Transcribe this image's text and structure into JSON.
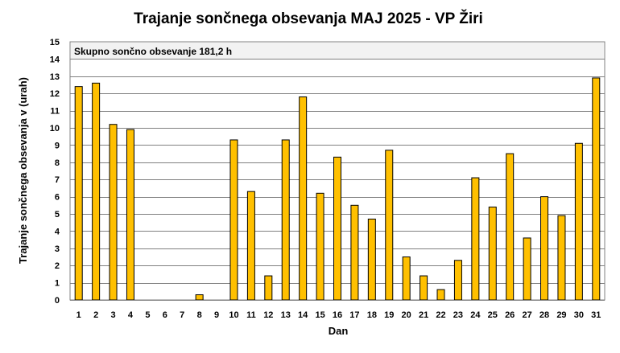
{
  "chart_data": {
    "type": "bar",
    "title": "Trajanje  sončnega obsevanja  MAJ 2025 - VP Žiri",
    "xlabel": "Dan",
    "ylabel": "Trajanje  sončnega obsevanja  v (urah)",
    "annotation": "Skupno sončno obsevanje 181,2 h",
    "ylim": [
      0,
      15
    ],
    "yticks": [
      0,
      1,
      2,
      3,
      4,
      5,
      6,
      7,
      8,
      9,
      10,
      11,
      12,
      13,
      14,
      15
    ],
    "categories": [
      "1",
      "2",
      "3",
      "4",
      "5",
      "6",
      "7",
      "8",
      "9",
      "10",
      "11",
      "12",
      "13",
      "14",
      "15",
      "16",
      "17",
      "18",
      "19",
      "20",
      "21",
      "22",
      "23",
      "24",
      "25",
      "26",
      "27",
      "28",
      "29",
      "30",
      "31"
    ],
    "values": [
      12.4,
      12.6,
      10.2,
      9.9,
      0,
      0,
      0,
      0.3,
      0,
      9.3,
      6.3,
      1.4,
      9.3,
      11.8,
      6.2,
      8.3,
      5.5,
      4.7,
      8.7,
      2.5,
      1.4,
      0.6,
      2.3,
      7.1,
      5.4,
      8.5,
      3.6,
      6.0,
      4.9,
      9.1,
      12.9
    ],
    "grid": true,
    "legend": "none",
    "colors": {
      "bar_fill": "#FFC000",
      "bar_stroke": "#000000",
      "plot_bg": "#FFFFFF",
      "annotation_bg": "#F2F2F2",
      "grid": "#808080"
    }
  }
}
